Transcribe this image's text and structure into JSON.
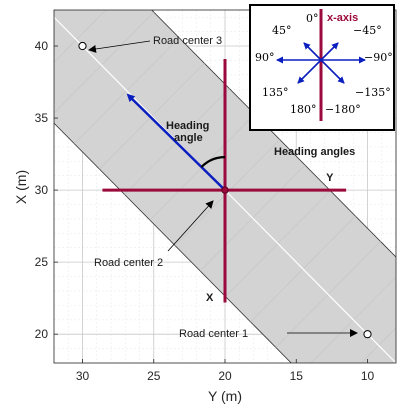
{
  "axes": {
    "xlabel": "Y (m)",
    "ylabel": "X (m)",
    "xlim": [
      32,
      8
    ],
    "ylim": [
      18,
      42.5
    ],
    "xticks": [
      "30",
      "25",
      "20",
      "15",
      "10"
    ],
    "yticks": [
      "20",
      "25",
      "30",
      "35",
      "40"
    ],
    "grid": true,
    "minor_grid": true
  },
  "road": {
    "centers": [
      {
        "label": "Road center 1",
        "Y": 10,
        "X": 20
      },
      {
        "label": "Road center 2",
        "Y": 20,
        "X": 30
      },
      {
        "label": "Road center 3",
        "Y": 30,
        "X": 40
      }
    ],
    "fill_color": "#d3d3d3",
    "centerline_color": "#ffffff"
  },
  "local_axes": {
    "x_label": "X",
    "y_label": "Y",
    "color": "#9b0a3c"
  },
  "heading": {
    "label_line1": "Heading",
    "label_line2": "angle",
    "vector_color": "#0b1fbf"
  },
  "inset": {
    "title": "Heading angles",
    "axis_label": "x-axis",
    "angles": [
      "0°",
      "45°",
      "−45°",
      "90°",
      "−90°",
      "135°",
      "−135°",
      "180°",
      "−180°"
    ]
  }
}
